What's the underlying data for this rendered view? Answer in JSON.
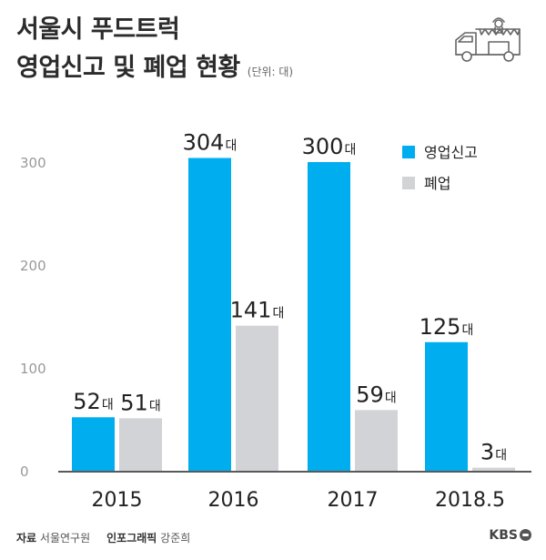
{
  "header": {
    "title_line1": "서울시 푸드트럭",
    "title_line2": "영업신고 및 폐업 현황",
    "unit": "(단위: 대)"
  },
  "footer": {
    "source_label": "자료",
    "source": "서울연구원",
    "graphic_label": "인포그래픽",
    "graphic_author": "강준희",
    "brand": "KBS"
  },
  "icons": {
    "header_icon": "food-truck-icon",
    "brand_icon": "kbs-logo-icon"
  },
  "chart_data": {
    "type": "bar",
    "categories": [
      "2015",
      "2016",
      "2017",
      "2018.5"
    ],
    "series": [
      {
        "name": "영업신고",
        "values": [
          52,
          304,
          300,
          125
        ],
        "labels": [
          "52대",
          "304대",
          "300대",
          "125대"
        ],
        "color": "#00AEEF"
      },
      {
        "name": "폐업",
        "values": [
          51,
          141,
          59,
          3
        ],
        "labels": [
          "51대",
          "141대",
          "59대",
          "3대"
        ],
        "color": "#D1D3D6"
      }
    ],
    "yticks": [
      "0",
      "100",
      "200",
      "300"
    ],
    "ylim": [
      0,
      350
    ],
    "legend": "top-right",
    "grid": false
  }
}
